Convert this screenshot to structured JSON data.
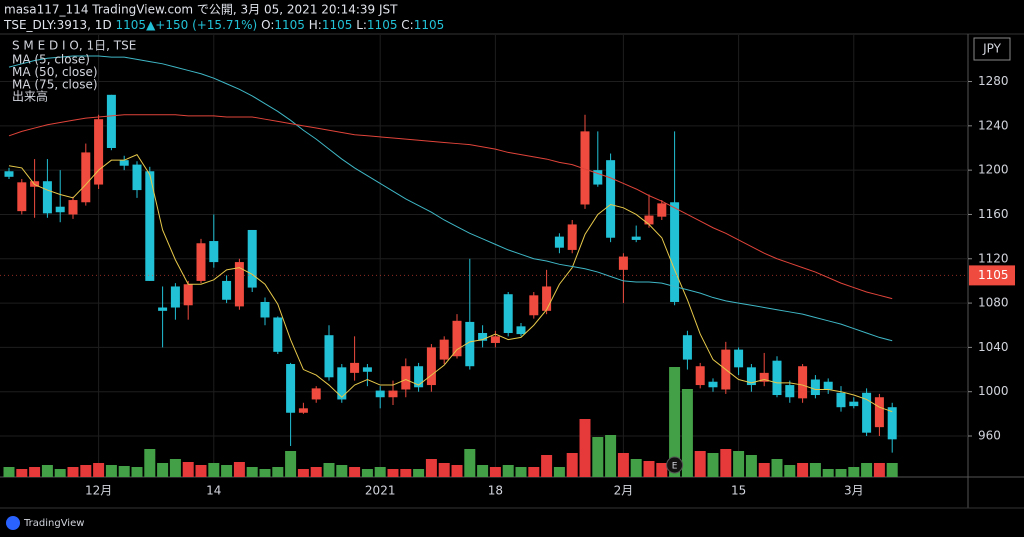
{
  "header": {
    "line1": "masa117_114 TradingView.com で公開, 3月 05, 2021 20:14:39 JST",
    "symbol": "TSE_DLY:3913, 1D",
    "last": "1105",
    "change": "▲+150 (+15.71%)",
    "quote": [
      {
        "label": "O:",
        "value": "1105"
      },
      {
        "label": "H:",
        "value": "1105"
      },
      {
        "label": "L:",
        "value": "1105"
      },
      {
        "label": "C:",
        "value": "1105"
      }
    ]
  },
  "legend": {
    "instrument": "S M E D I O, 1日, TSE",
    "volume_label": "出来高"
  },
  "currency": "JPY",
  "footer": "TradingView",
  "chart_data": {
    "type": "candlestick",
    "categories": [
      null,
      null,
      null,
      null,
      null,
      null,
      null,
      "12月",
      null,
      null,
      null,
      null,
      null,
      null,
      null,
      null,
      "14",
      null,
      null,
      null,
      null,
      null,
      null,
      null,
      null,
      null,
      null,
      null,
      null,
      "2021",
      null,
      null,
      null,
      null,
      null,
      null,
      null,
      null,
      "18",
      null,
      null,
      null,
      null,
      null,
      null,
      null,
      null,
      null,
      "2月",
      null,
      null,
      null,
      null,
      null,
      null,
      null,
      null,
      "15",
      null,
      null,
      null,
      null,
      null,
      null,
      null,
      null,
      "3月",
      null,
      null,
      null
    ],
    "open": [
      1199,
      1163,
      1185,
      1190,
      1167,
      1160,
      1171,
      1187,
      1268,
      1209,
      1205,
      1199,
      1076,
      1095,
      1078,
      1100,
      1136,
      1100,
      1077,
      1146,
      1081,
      1067,
      1025,
      981,
      993,
      1051,
      1022,
      1017,
      1022,
      1001,
      995,
      1002,
      1023,
      1006,
      1029,
      1032,
      1063,
      1053,
      1044,
      1088,
      1059,
      1069,
      1073,
      1140,
      1128,
      1169,
      1200,
      1209,
      1110,
      1140,
      1151,
      1158,
      1171,
      1051,
      1006,
      1009,
      1002,
      1038,
      1022,
      1009,
      1028,
      1006,
      994,
      1011,
      1009,
      999,
      991,
      999,
      968,
      986
    ],
    "high": [
      1202,
      1192,
      1210,
      1210,
      1200,
      1176,
      1224,
      1250,
      1268,
      1213,
      1208,
      1203,
      1095,
      1098,
      1100,
      1138,
      1160,
      1105,
      1120,
      1146,
      1085,
      1068,
      1026,
      990,
      1005,
      1060,
      1025,
      1050,
      1025,
      1005,
      1010,
      1030,
      1026,
      1043,
      1050,
      1070,
      1120,
      1060,
      1055,
      1090,
      1062,
      1090,
      1110,
      1143,
      1155,
      1250,
      1235,
      1215,
      1125,
      1150,
      1178,
      1173,
      1235,
      1055,
      1026,
      1012,
      1045,
      1040,
      1025,
      1035,
      1032,
      1010,
      1025,
      1015,
      1012,
      1005,
      995,
      1003,
      998,
      990
    ],
    "low": [
      1192,
      1160,
      1157,
      1157,
      1153,
      1156,
      1168,
      1183,
      1218,
      1200,
      1175,
      1100,
      1040,
      1065,
      1065,
      1098,
      1112,
      1080,
      1074,
      1090,
      1060,
      1034,
      951,
      980,
      990,
      1010,
      990,
      1010,
      1005,
      985,
      988,
      995,
      1000,
      1000,
      1025,
      1030,
      1020,
      1040,
      1040,
      1050,
      1050,
      1066,
      1070,
      1125,
      1125,
      1165,
      1185,
      1135,
      1080,
      1135,
      1148,
      1155,
      1078,
      1020,
      1003,
      1000,
      998,
      1015,
      1000,
      1005,
      995,
      990,
      990,
      994,
      998,
      982,
      985,
      960,
      960,
      945
    ],
    "close": [
      1194,
      1189,
      1190,
      1161,
      1162,
      1173,
      1216,
      1246,
      1220,
      1204,
      1182,
      1100,
      1073,
      1076,
      1097,
      1134,
      1117,
      1083,
      1117,
      1094,
      1067,
      1036,
      981,
      985,
      1003,
      1013,
      993,
      1026,
      1018,
      995,
      1001,
      1023,
      1004,
      1040,
      1047,
      1064,
      1023,
      1046,
      1050,
      1053,
      1052,
      1087,
      1095,
      1130,
      1151,
      1235,
      1187,
      1139,
      1122,
      1137,
      1159,
      1170,
      1081,
      1029,
      1023,
      1004,
      1038,
      1022,
      1006,
      1017,
      997,
      995,
      1023,
      997,
      1002,
      986,
      987,
      963,
      995,
      957
    ],
    "up_color": "#ef4b3f",
    "down_color": "#22c1d6",
    "volume": [
      10,
      8,
      10,
      12,
      8,
      10,
      12,
      14,
      12,
      11,
      10,
      28,
      14,
      18,
      15,
      12,
      14,
      12,
      15,
      10,
      8,
      10,
      26,
      8,
      10,
      14,
      12,
      10,
      8,
      10,
      8,
      8,
      8,
      18,
      14,
      12,
      28,
      12,
      10,
      12,
      10,
      10,
      22,
      10,
      24,
      58,
      40,
      42,
      24,
      18,
      16,
      14,
      110,
      88,
      26,
      24,
      28,
      26,
      22,
      14,
      18,
      12,
      14,
      14,
      8,
      8,
      10,
      14,
      14,
      14
    ],
    "volume_lim": [
      0,
      442
    ],
    "volume_up_color": "#e5393a",
    "volume_down_color": "#43a047",
    "series": [
      {
        "name": "MA (5, close)",
        "color": "#e6c84a",
        "values": [
          1204,
          1202,
          1187,
          1182,
          1178,
          1175,
          1187,
          1200,
          1209,
          1209,
          1214,
          1196,
          1146,
          1119,
          1097,
          1097,
          1101,
          1110,
          1112,
          1106,
          1097,
          1079,
          1047,
          1020,
          1015,
          1006,
          995,
          1006,
          1011,
          1006,
          1006,
          1011,
          1006,
          1015,
          1024,
          1038,
          1045,
          1047,
          1052,
          1047,
          1049,
          1060,
          1074,
          1097,
          1112,
          1142,
          1160,
          1169,
          1166,
          1160,
          1151,
          1139,
          1110,
          1083,
          1052,
          1029,
          1020,
          1011,
          1008,
          1011,
          1008,
          1008,
          1006,
          1002,
          1002,
          1000,
          997,
          993,
          986,
          982
        ]
      },
      {
        "name": "MA (50, close)",
        "color": "#3fb7c6",
        "values": [
          1293,
          1296,
          1299,
          1301,
          1302,
          1303,
          1303,
          1303,
          1302,
          1302,
          1300,
          1298,
          1296,
          1293,
          1290,
          1287,
          1283,
          1278,
          1273,
          1267,
          1260,
          1253,
          1245,
          1236,
          1228,
          1219,
          1210,
          1202,
          1195,
          1188,
          1181,
          1174,
          1168,
          1162,
          1155,
          1149,
          1143,
          1138,
          1133,
          1128,
          1124,
          1120,
          1118,
          1115,
          1113,
          1111,
          1108,
          1104,
          1100,
          1099,
          1099,
          1098,
          1095,
          1092,
          1089,
          1085,
          1082,
          1080,
          1078,
          1076,
          1074,
          1072,
          1070,
          1067,
          1064,
          1061,
          1057,
          1053,
          1049,
          1046
        ]
      },
      {
        "name": "MA (75, close)",
        "color": "#e0443a",
        "values": [
          1231,
          1235,
          1238,
          1241,
          1243,
          1245,
          1247,
          1248,
          1249,
          1250,
          1250,
          1250,
          1250,
          1250,
          1249,
          1249,
          1249,
          1248,
          1248,
          1248,
          1246,
          1244,
          1242,
          1240,
          1238,
          1236,
          1234,
          1232,
          1231,
          1230,
          1229,
          1228,
          1227,
          1226,
          1225,
          1224,
          1223,
          1221,
          1219,
          1216,
          1214,
          1212,
          1210,
          1207,
          1205,
          1201,
          1197,
          1193,
          1188,
          1183,
          1177,
          1172,
          1166,
          1160,
          1154,
          1148,
          1143,
          1137,
          1131,
          1125,
          1120,
          1116,
          1112,
          1108,
          1103,
          1098,
          1094,
          1090,
          1087,
          1084
        ]
      }
    ],
    "last_price": 1105,
    "last_price_label": "1105",
    "earnings_marker": "E",
    "ylim": [
      923,
      1322
    ],
    "yticks": [
      960,
      1000,
      1040,
      1080,
      1120,
      1160,
      1200,
      1240,
      1280
    ],
    "grid": true
  }
}
